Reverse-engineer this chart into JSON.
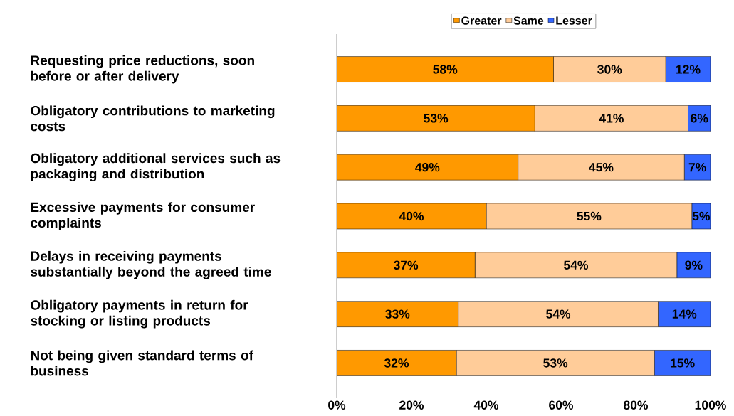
{
  "chart_data": {
    "type": "bar",
    "orientation": "horizontal",
    "stacked": true,
    "categories": [
      "Requesting price reductions, soon before or after delivery",
      "Obligatory contributions to marketing costs",
      "Obligatory additional services such as packaging and distribution",
      "Excessive payments for consumer complaints",
      "Delays in receiving payments substantially beyond the agreed time",
      "Obligatory payments in return for stocking or listing products",
      "Not being given standard terms of business"
    ],
    "series": [
      {
        "name": "Greater",
        "color": "#ff9900",
        "values": [
          58,
          53,
          48.5,
          40,
          37,
          32.5,
          32
        ],
        "value_labels": [
          "58%",
          "53%",
          "49%",
          "40%",
          "37%",
          "33%",
          "32%"
        ]
      },
      {
        "name": "Same",
        "color": "#ffcc99",
        "values": [
          30,
          41,
          44.5,
          55,
          54,
          53.5,
          53
        ],
        "value_labels": [
          "30%",
          "41%",
          "45%",
          "55%",
          "54%",
          "54%",
          "53%"
        ]
      },
      {
        "name": "Lesser",
        "color": "#3366ff",
        "values": [
          12,
          6,
          7,
          5,
          9,
          14,
          15
        ],
        "value_labels": [
          "12%",
          "6%",
          "7%",
          "5%",
          "9%",
          "14%",
          "15%"
        ]
      }
    ],
    "xlim": [
      0,
      100
    ],
    "xticks": [
      {
        "value": 0,
        "label": "0%"
      },
      {
        "value": 20,
        "label": "20%"
      },
      {
        "value": 40,
        "label": "40%"
      },
      {
        "value": 60,
        "label": "60%"
      },
      {
        "value": 80,
        "label": "80%"
      },
      {
        "value": 100,
        "label": "100%"
      }
    ],
    "legend": "top",
    "grid": false
  }
}
